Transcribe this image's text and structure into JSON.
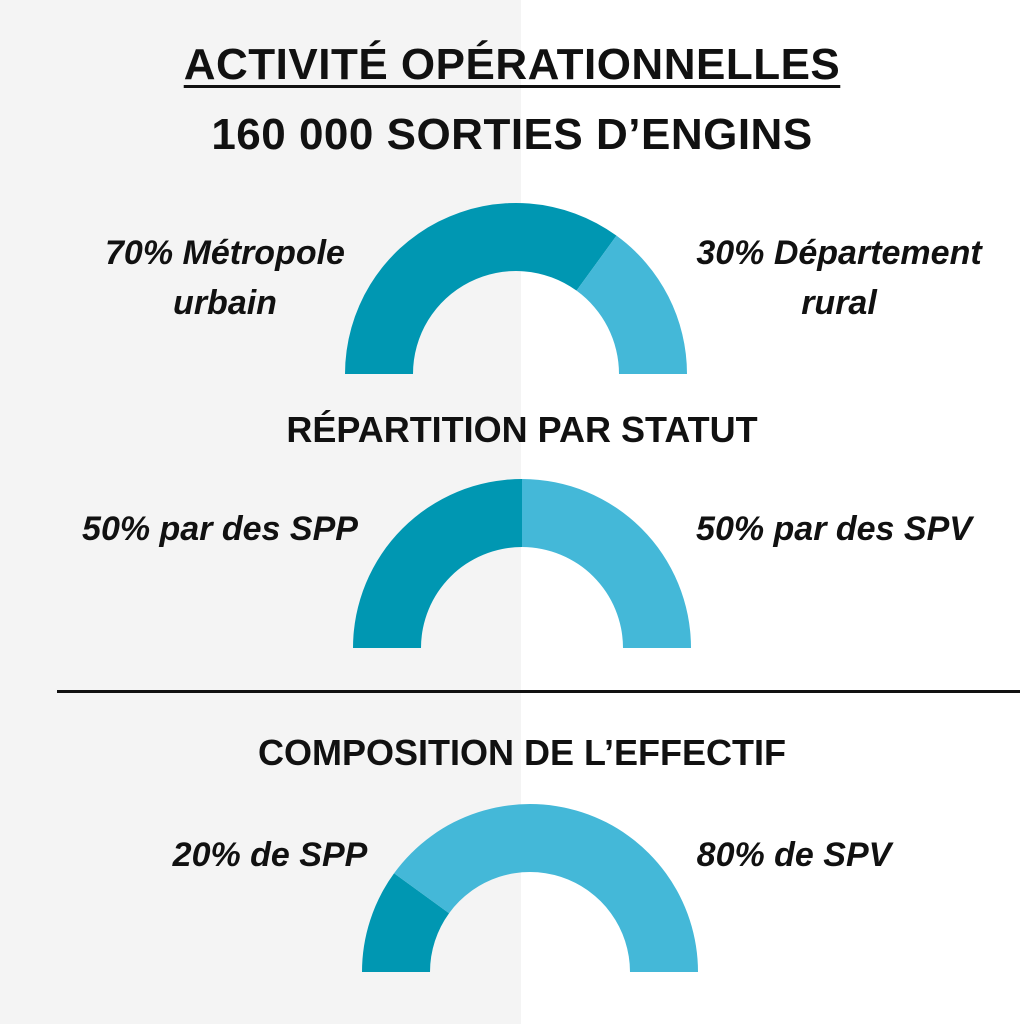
{
  "title": "ACTIVITÉ OPÉRATIONNELLES",
  "subtitle": "160 000 SORTIES D’ENGINS",
  "colors": {
    "dark_teal": "#0097b2",
    "light_blue": "#44b8d8",
    "left_background": "#f4f4f4",
    "right_background": "#ffffff"
  },
  "chart_data": [
    {
      "type": "pie",
      "variant": "half-donut",
      "title": "",
      "slices": [
        {
          "label_lines": [
            "70% Métropole",
            "urbain"
          ],
          "value": 70,
          "color": "#0097b2"
        },
        {
          "label_lines": [
            "30% Département",
            "rural"
          ],
          "value": 30,
          "color": "#44b8d8"
        }
      ]
    },
    {
      "type": "pie",
      "variant": "half-donut",
      "title": "RÉPARTITION PAR STATUT",
      "slices": [
        {
          "label_lines": [
            "50% par des SPP"
          ],
          "value": 50,
          "color": "#0097b2"
        },
        {
          "label_lines": [
            "50% par des SPV"
          ],
          "value": 50,
          "color": "#44b8d8"
        }
      ]
    },
    {
      "type": "pie",
      "variant": "half-donut",
      "title": "COMPOSITION DE L’EFFECTIF",
      "slices": [
        {
          "label_lines": [
            "20% de SPP"
          ],
          "value": 20,
          "color": "#0097b2"
        },
        {
          "label_lines": [
            "80% de SPV"
          ],
          "value": 80,
          "color": "#44b8d8"
        }
      ]
    }
  ]
}
